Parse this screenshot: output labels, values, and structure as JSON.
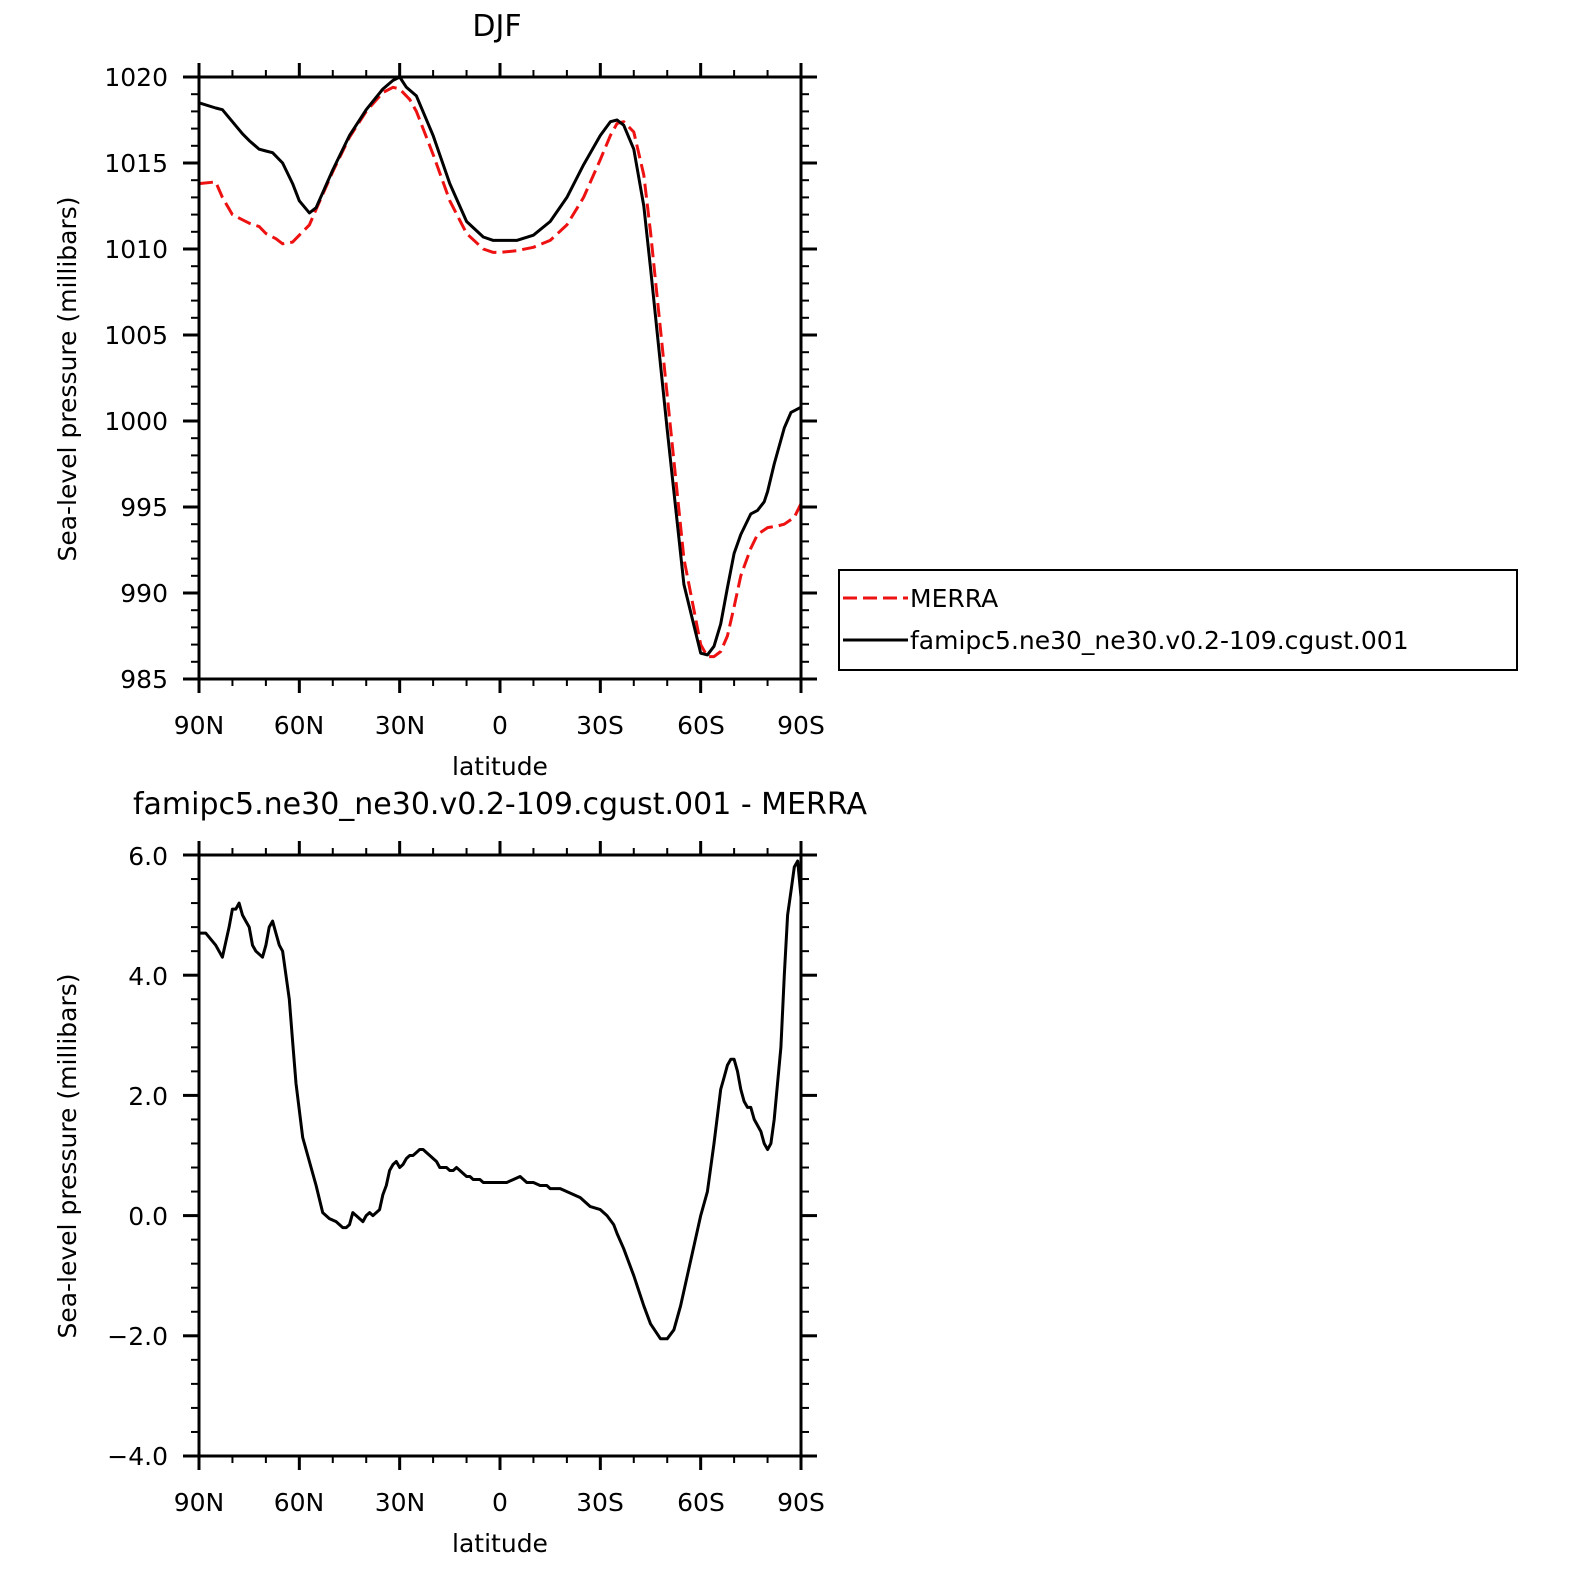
{
  "chart_data": [
    {
      "type": "line",
      "title": "DJF",
      "xlabel": "latitude",
      "ylabel": "Sea-level pressure (millibars)",
      "x_tick_labels": [
        "90N",
        "60N",
        "30N",
        "0",
        "30S",
        "60S",
        "90S"
      ],
      "y_tick_labels": [
        "985",
        "990",
        "995",
        "1000",
        "1005",
        "1010",
        "1015",
        "1020"
      ],
      "y_ticks": [
        985,
        990,
        995,
        1000,
        1005,
        1010,
        1015,
        1020
      ],
      "x_ticks": [
        90,
        60,
        30,
        0,
        -30,
        -60,
        -90
      ],
      "xlim": [
        90,
        -90
      ],
      "ylim": [
        985,
        1020
      ],
      "grid": false,
      "legend": "outside-right",
      "series": [
        {
          "name": "MERRA",
          "color": "#ee1111",
          "dash": "dashed",
          "x": [
            90,
            85,
            83,
            80,
            77,
            75,
            72,
            70,
            67,
            65,
            62,
            60,
            57,
            55,
            50,
            45,
            40,
            35,
            32,
            30,
            27,
            25,
            20,
            15,
            10,
            5,
            2,
            0,
            -5,
            -10,
            -15,
            -20,
            -25,
            -30,
            -33,
            -35,
            -37,
            -40,
            -43,
            -45,
            -50,
            -55,
            -60,
            -62,
            -64,
            -66,
            -68,
            -70,
            -72,
            -75,
            -77,
            -80,
            -83,
            -85,
            -88,
            -90
          ],
          "y": [
            1013.8,
            1013.9,
            1013.0,
            1012.0,
            1011.7,
            1011.5,
            1011.3,
            1010.9,
            1010.6,
            1010.3,
            1010.4,
            1010.8,
            1011.4,
            1012.3,
            1014.5,
            1016.5,
            1018.0,
            1019.1,
            1019.4,
            1019.3,
            1018.7,
            1018.0,
            1015.5,
            1012.8,
            1010.9,
            1010.0,
            1009.8,
            1009.8,
            1009.9,
            1010.1,
            1010.5,
            1011.4,
            1013.0,
            1015.2,
            1016.6,
            1017.3,
            1017.4,
            1016.8,
            1014.3,
            1011.0,
            1001.5,
            992.0,
            987.0,
            986.3,
            986.3,
            986.6,
            987.5,
            989.2,
            991.0,
            992.6,
            993.4,
            993.8,
            993.9,
            994.0,
            994.4,
            995.2
          ]
        },
        {
          "name": "famipc5.ne30_ne30.v0.2-109.cgust.001",
          "color": "#000000",
          "dash": "solid",
          "x": [
            90,
            85,
            83,
            80,
            77,
            75,
            72,
            70,
            68,
            65,
            62,
            60,
            57,
            55,
            50,
            45,
            40,
            35,
            32,
            30,
            28,
            25,
            20,
            15,
            10,
            5,
            2,
            0,
            -5,
            -10,
            -15,
            -20,
            -25,
            -30,
            -33,
            -35,
            -37,
            -40,
            -43,
            -45,
            -50,
            -55,
            -60,
            -62,
            -64,
            -66,
            -68,
            -70,
            -72,
            -75,
            -77,
            -79,
            -80,
            -82,
            -85,
            -87,
            -90
          ],
          "y": [
            1018.5,
            1018.2,
            1018.1,
            1017.4,
            1016.7,
            1016.3,
            1015.8,
            1015.7,
            1015.6,
            1015.0,
            1013.8,
            1012.8,
            1012.1,
            1012.4,
            1014.6,
            1016.6,
            1018.1,
            1019.3,
            1019.8,
            1020.0,
            1019.4,
            1018.9,
            1016.6,
            1013.8,
            1011.6,
            1010.7,
            1010.5,
            1010.5,
            1010.5,
            1010.8,
            1011.6,
            1013.0,
            1014.9,
            1016.6,
            1017.4,
            1017.5,
            1017.2,
            1015.8,
            1012.5,
            1008.9,
            999.5,
            990.5,
            986.5,
            986.4,
            986.9,
            988.2,
            990.3,
            992.3,
            993.4,
            994.6,
            994.8,
            995.3,
            995.9,
            997.5,
            999.6,
            1000.5,
            1000.8
          ]
        }
      ]
    },
    {
      "type": "line",
      "title": "famipc5.ne30_ne30.v0.2-109.cgust.001 - MERRA",
      "xlabel": "latitude",
      "ylabel": "Sea-level pressure (millibars)",
      "x_tick_labels": [
        "90N",
        "60N",
        "30N",
        "0",
        "30S",
        "60S",
        "90S"
      ],
      "y_tick_labels": [
        "−4.0",
        "−2.0",
        "0.0",
        "2.0",
        "4.0",
        "6.0"
      ],
      "y_ticks": [
        -4,
        -2,
        0,
        2,
        4,
        6
      ],
      "x_ticks": [
        90,
        60,
        30,
        0,
        -30,
        -60,
        -90
      ],
      "xlim": [
        90,
        -90
      ],
      "ylim": [
        -4,
        6
      ],
      "grid": false,
      "series": [
        {
          "color": "#000000",
          "dash": "solid",
          "x": [
            90,
            88,
            85,
            83,
            81,
            80,
            79,
            78,
            77,
            76,
            75,
            74,
            73,
            71,
            70,
            69,
            68,
            67,
            66,
            65,
            63,
            62,
            61,
            59,
            57,
            55,
            53,
            51,
            49,
            47,
            46,
            45,
            44,
            43,
            41,
            40,
            39,
            38,
            36,
            35,
            34,
            33,
            32,
            31,
            30,
            29,
            28,
            27,
            26,
            25,
            24,
            23,
            22,
            21,
            20,
            19,
            18,
            17,
            16,
            15,
            14,
            13,
            12,
            11,
            10,
            9,
            8,
            7,
            6,
            5,
            4,
            3,
            2,
            1,
            0,
            -2,
            -4,
            -6,
            -8,
            -10,
            -12,
            -14,
            -15,
            -16,
            -18,
            -20,
            -22,
            -24,
            -25,
            -27,
            -30,
            -32,
            -34,
            -35,
            -37,
            -40,
            -43,
            -45,
            -48,
            -50,
            -52,
            -54,
            -56,
            -58,
            -60,
            -62,
            -64,
            -66,
            -67,
            -68,
            -69,
            -70,
            -71,
            -72,
            -73,
            -74,
            -75,
            -76,
            -78,
            -79,
            -80,
            -81,
            -82,
            -84,
            -85,
            -86,
            -87,
            -88,
            -89,
            -90
          ],
          "y": [
            4.7,
            4.7,
            4.5,
            4.3,
            4.8,
            5.1,
            5.1,
            5.2,
            5.0,
            4.9,
            4.8,
            4.5,
            4.4,
            4.3,
            4.5,
            4.8,
            4.9,
            4.7,
            4.5,
            4.4,
            3.6,
            2.9,
            2.2,
            1.3,
            0.9,
            0.5,
            0.05,
            -0.05,
            -0.1,
            -0.2,
            -0.2,
            -0.15,
            0.05,
            0.0,
            -0.1,
            0.0,
            0.05,
            0.0,
            0.1,
            0.35,
            0.5,
            0.75,
            0.85,
            0.9,
            0.8,
            0.85,
            0.95,
            1.0,
            1.0,
            1.05,
            1.1,
            1.1,
            1.05,
            1.0,
            0.95,
            0.9,
            0.8,
            0.8,
            0.8,
            0.75,
            0.75,
            0.8,
            0.75,
            0.7,
            0.65,
            0.65,
            0.6,
            0.6,
            0.6,
            0.55,
            0.55,
            0.55,
            0.55,
            0.55,
            0.55,
            0.55,
            0.6,
            0.65,
            0.55,
            0.55,
            0.5,
            0.5,
            0.45,
            0.45,
            0.45,
            0.4,
            0.35,
            0.3,
            0.25,
            0.15,
            0.1,
            0.0,
            -0.15,
            -0.3,
            -0.55,
            -1.0,
            -1.5,
            -1.8,
            -2.05,
            -2.05,
            -1.9,
            -1.5,
            -1.0,
            -0.5,
            0.0,
            0.4,
            1.2,
            2.1,
            2.3,
            2.5,
            2.6,
            2.6,
            2.4,
            2.1,
            1.9,
            1.8,
            1.8,
            1.6,
            1.4,
            1.2,
            1.1,
            1.2,
            1.6,
            2.8,
            4.0,
            5.0,
            5.4,
            5.8,
            5.9,
            5.3
          ]
        }
      ]
    }
  ]
}
